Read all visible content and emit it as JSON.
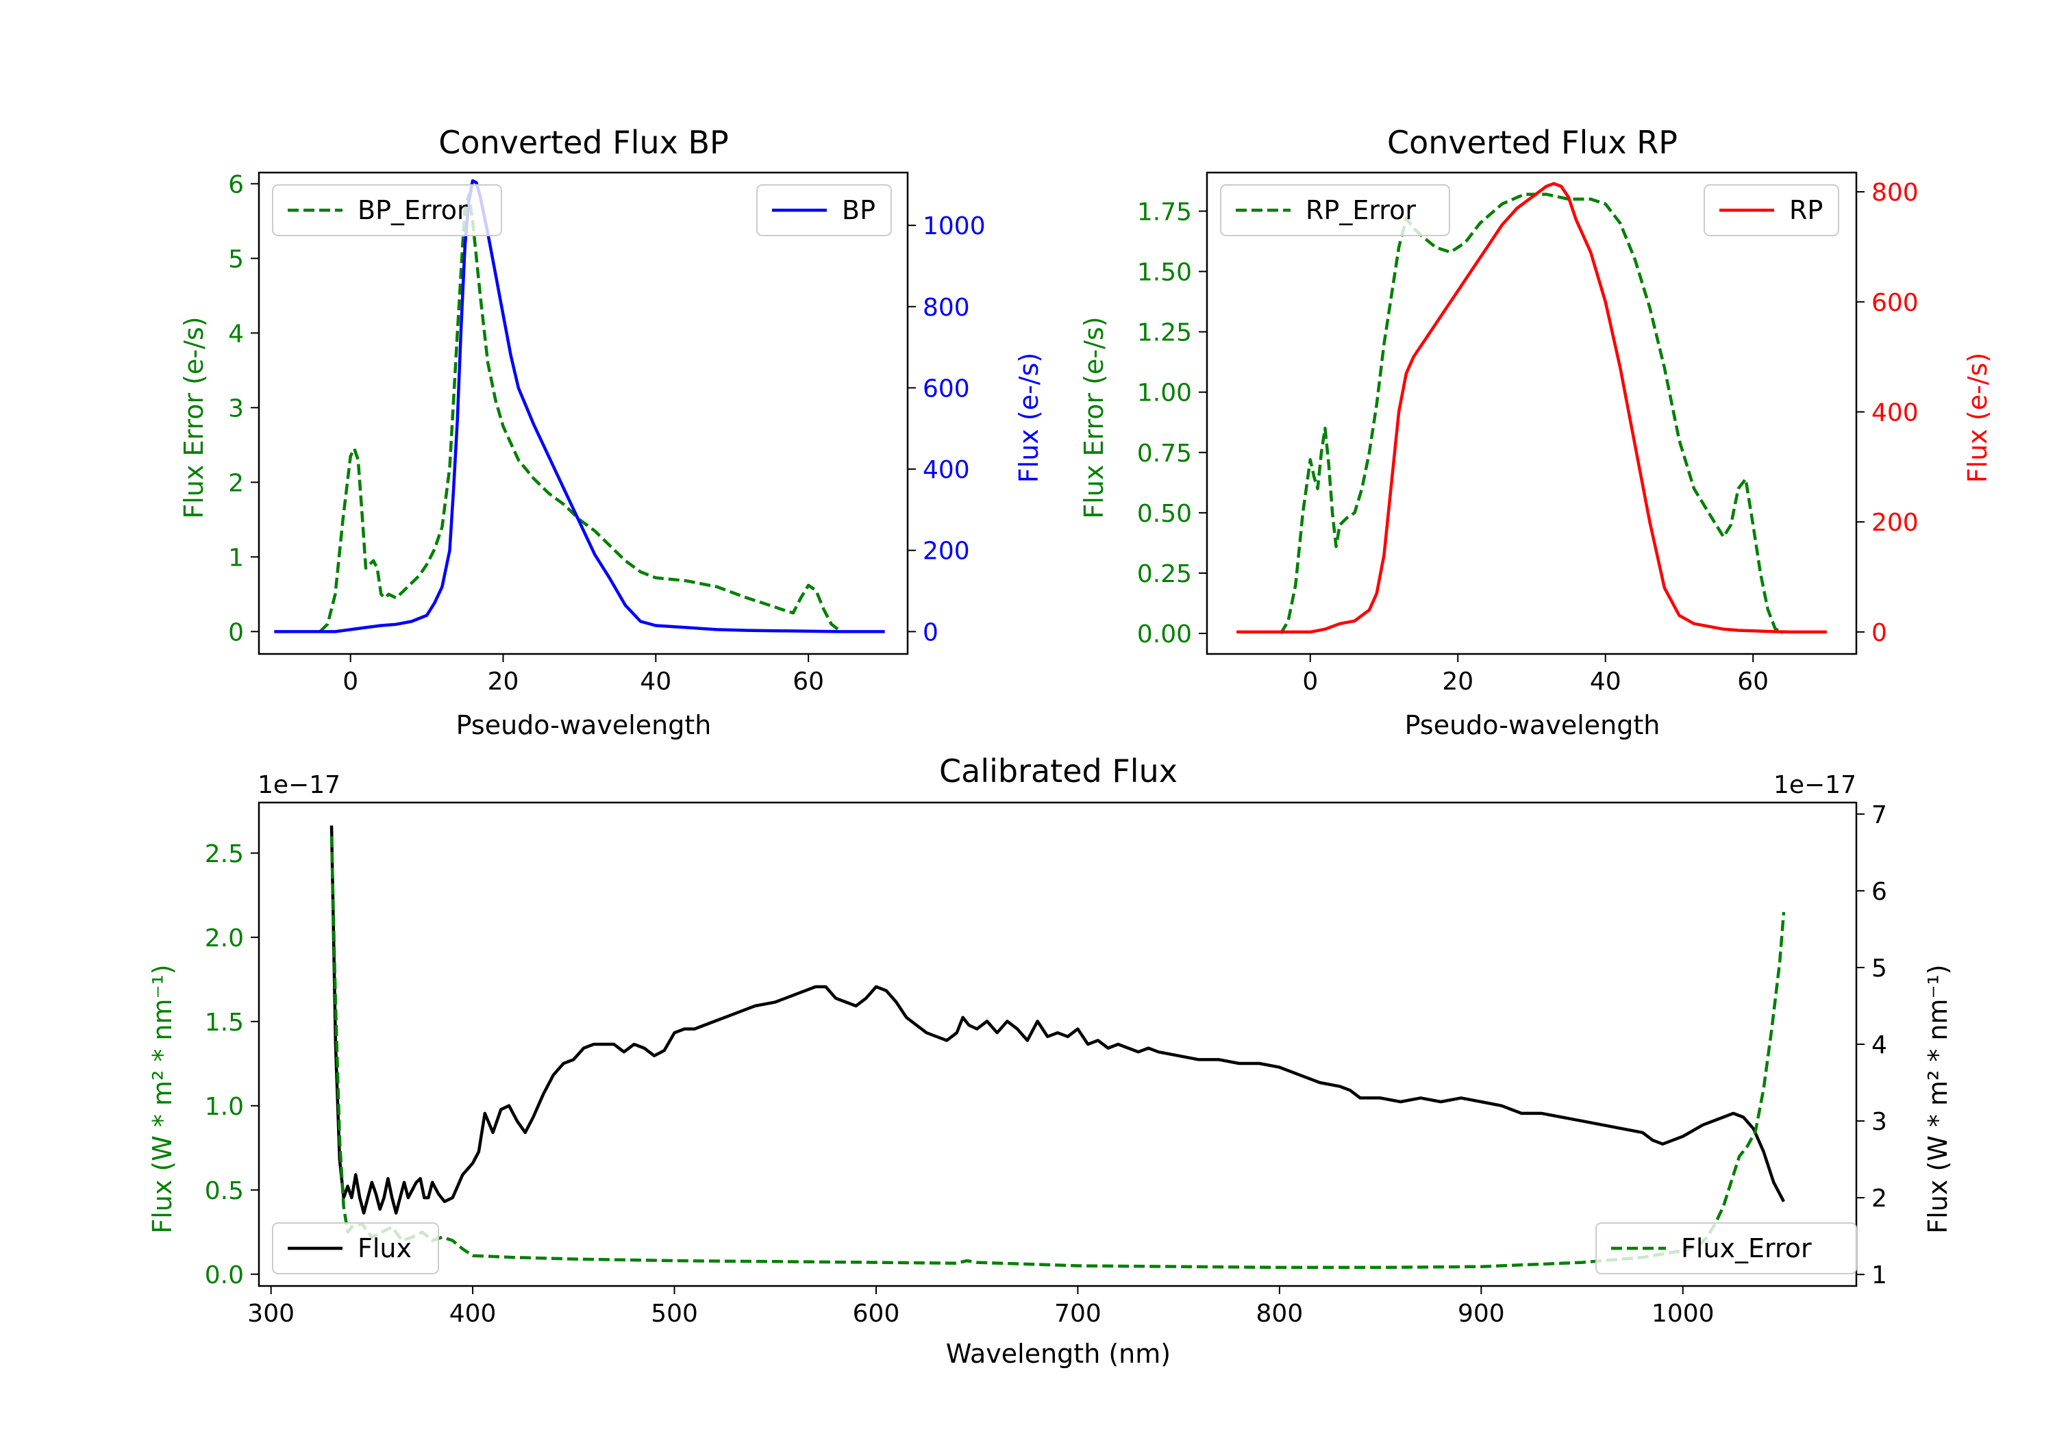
{
  "chart_data": [
    {
      "type": "line",
      "title": "Converted Flux BP",
      "xlabel": "Pseudo-wavelength",
      "ylabel_left": "Flux Error (e-/s)",
      "ylabel_right": "Flux (e-/s)",
      "xlim": [
        -12,
        73
      ],
      "ylim_left": [
        -0.3,
        6.15
      ],
      "ylim_right": [
        -55,
        1130
      ],
      "xticks": [
        0,
        20,
        40,
        60
      ],
      "yticks_left": [
        0,
        1,
        2,
        3,
        4,
        5,
        6
      ],
      "yticks_right": [
        0,
        200,
        400,
        600,
        800,
        1000
      ],
      "colors": {
        "left": "#008000",
        "right": "#0000ff"
      },
      "series": [
        {
          "name": "BP_Error",
          "axis": "left",
          "style": "dashed",
          "color": "#008000",
          "legend": "top-left",
          "x": [
            -4,
            -3,
            -2,
            -1,
            0,
            0.5,
            1,
            1.5,
            2,
            3,
            3.5,
            4,
            4.5,
            5,
            6,
            7,
            8,
            9,
            10,
            11,
            12,
            13,
            14,
            15,
            15.5,
            16,
            17,
            18,
            19,
            20,
            22,
            24,
            26,
            28,
            30,
            32,
            34,
            36,
            38,
            40,
            44,
            48,
            52,
            55,
            57,
            58,
            59,
            60,
            61,
            62,
            63,
            64
          ],
          "y": [
            0,
            0.1,
            0.5,
            1.5,
            2.35,
            2.45,
            2.3,
            1.6,
            0.85,
            0.95,
            0.85,
            0.5,
            0.45,
            0.5,
            0.45,
            0.55,
            0.65,
            0.75,
            0.9,
            1.1,
            1.4,
            2.2,
            4.0,
            5.7,
            5.85,
            5.5,
            4.5,
            3.6,
            3.1,
            2.75,
            2.3,
            2.05,
            1.85,
            1.7,
            1.5,
            1.35,
            1.15,
            0.95,
            0.8,
            0.72,
            0.68,
            0.6,
            0.45,
            0.35,
            0.28,
            0.25,
            0.45,
            0.62,
            0.55,
            0.3,
            0.1,
            0.02
          ]
        },
        {
          "name": "BP",
          "axis": "right",
          "style": "solid",
          "color": "#0000ff",
          "legend": "top-right",
          "x": [
            -10,
            -6,
            -2,
            0,
            2,
            4,
            6,
            8,
            10,
            11,
            12,
            13,
            13.5,
            14,
            14.5,
            15,
            15.5,
            16,
            16.5,
            17,
            18,
            19,
            20,
            21,
            22,
            24,
            26,
            28,
            30,
            32,
            34,
            36,
            38,
            40,
            44,
            48,
            52,
            56,
            60,
            64,
            68,
            70
          ],
          "y": [
            0,
            0,
            0,
            5,
            10,
            15,
            18,
            25,
            40,
            70,
            110,
            200,
            350,
            520,
            750,
            950,
            1060,
            1110,
            1105,
            1070,
            980,
            880,
            780,
            680,
            600,
            510,
            430,
            350,
            270,
            190,
            130,
            65,
            25,
            15,
            10,
            5,
            3,
            2,
            1,
            0,
            0,
            0
          ]
        }
      ]
    },
    {
      "type": "line",
      "title": "Converted Flux RP",
      "xlabel": "Pseudo-wavelength",
      "ylabel_left": "Flux Error (e-/s)",
      "ylabel_right": "Flux (e-/s)",
      "xlim": [
        -14,
        74
      ],
      "ylim_left": [
        -0.085,
        1.91
      ],
      "ylim_right": [
        -40,
        835
      ],
      "xticks": [
        0,
        20,
        40,
        60
      ],
      "yticks_left": [
        0.0,
        0.25,
        0.5,
        0.75,
        1.0,
        1.25,
        1.5,
        1.75
      ],
      "yticks_left_labels": [
        "0.00",
        "0.25",
        "0.50",
        "0.75",
        "1.00",
        "1.25",
        "1.50",
        "1.75"
      ],
      "yticks_right": [
        0,
        200,
        400,
        600,
        800
      ],
      "colors": {
        "left": "#008000",
        "right": "#ff0000"
      },
      "series": [
        {
          "name": "RP_Error",
          "axis": "left",
          "style": "dashed",
          "color": "#008000",
          "legend": "top-left",
          "x": [
            -4,
            -3,
            -2,
            -1,
            0,
            0.5,
            1,
            1.5,
            2,
            2.5,
            3,
            3.5,
            4,
            5,
            6,
            7,
            8,
            9,
            10,
            11,
            12,
            13,
            14,
            15,
            17,
            19,
            21,
            23,
            26,
            29,
            32,
            35,
            38,
            40,
            42,
            44,
            46,
            48,
            50,
            52,
            54,
            56,
            57,
            58,
            59,
            60,
            61,
            62,
            63,
            64
          ],
          "y": [
            0,
            0.05,
            0.2,
            0.5,
            0.72,
            0.65,
            0.6,
            0.75,
            0.85,
            0.7,
            0.5,
            0.36,
            0.45,
            0.48,
            0.5,
            0.6,
            0.75,
            0.95,
            1.2,
            1.4,
            1.6,
            1.72,
            1.68,
            1.65,
            1.6,
            1.58,
            1.62,
            1.7,
            1.78,
            1.82,
            1.82,
            1.8,
            1.8,
            1.78,
            1.7,
            1.55,
            1.35,
            1.1,
            0.8,
            0.6,
            0.5,
            0.4,
            0.45,
            0.6,
            0.64,
            0.45,
            0.25,
            0.1,
            0.02,
            0
          ]
        },
        {
          "name": "RP",
          "axis": "right",
          "style": "solid",
          "color": "#ff0000",
          "legend": "top-right",
          "x": [
            -10,
            -5,
            0,
            2,
            4,
            6,
            8,
            9,
            10,
            11,
            12,
            13,
            14,
            16,
            18,
            20,
            22,
            24,
            26,
            28,
            30,
            32,
            33,
            34,
            35,
            36,
            38,
            40,
            42,
            44,
            46,
            48,
            50,
            52,
            54,
            56,
            58,
            60,
            62,
            65,
            70
          ],
          "y": [
            0,
            0,
            0,
            5,
            15,
            20,
            40,
            70,
            140,
            270,
            400,
            470,
            500,
            540,
            580,
            620,
            660,
            700,
            740,
            770,
            790,
            810,
            815,
            810,
            790,
            750,
            690,
            600,
            480,
            340,
            200,
            80,
            30,
            15,
            10,
            5,
            3,
            2,
            1,
            0,
            0
          ]
        }
      ]
    },
    {
      "type": "line",
      "title": "Calibrated Flux",
      "xlabel": "Wavelength (nm)",
      "ylabel_left": "Flux (W * m² * nm⁻¹)",
      "ylabel_right": "Flux (W * m² * nm⁻¹)",
      "scale_left": "1e−17",
      "scale_right": "1e−17",
      "xlim": [
        294,
        1086
      ],
      "ylim_left": [
        -0.07,
        2.8
      ],
      "ylim_right": [
        0.85,
        7.15
      ],
      "xticks": [
        300,
        400,
        500,
        600,
        700,
        800,
        900,
        1000
      ],
      "yticks_left": [
        0.0,
        0.5,
        1.0,
        1.5,
        2.0,
        2.5
      ],
      "yticks_left_labels": [
        "0.0",
        "0.5",
        "1.0",
        "1.5",
        "2.0",
        "2.5"
      ],
      "yticks_right": [
        1,
        2,
        3,
        4,
        5,
        6,
        7
      ],
      "colors": {
        "left": "#008000",
        "right": "#000000"
      },
      "series": [
        {
          "name": "Flux",
          "axis": "right",
          "style": "solid",
          "color": "#000000",
          "legend": "lower-left",
          "x": [
            330,
            332,
            334,
            336,
            338,
            340,
            342,
            344,
            346,
            348,
            350,
            352,
            354,
            356,
            358,
            360,
            362,
            364,
            366,
            368,
            370,
            372,
            374,
            376,
            378,
            380,
            383,
            386,
            390,
            395,
            400,
            403,
            406,
            410,
            414,
            418,
            422,
            426,
            430,
            435,
            440,
            445,
            450,
            455,
            460,
            465,
            470,
            475,
            480,
            485,
            490,
            495,
            500,
            505,
            510,
            520,
            530,
            540,
            550,
            560,
            570,
            575,
            580,
            585,
            590,
            595,
            600,
            605,
            610,
            615,
            620,
            625,
            630,
            635,
            640,
            643,
            646,
            650,
            655,
            660,
            665,
            670,
            675,
            680,
            685,
            690,
            695,
            700,
            705,
            710,
            715,
            720,
            725,
            730,
            735,
            740,
            750,
            760,
            770,
            780,
            790,
            800,
            810,
            820,
            830,
            835,
            840,
            850,
            860,
            870,
            880,
            890,
            900,
            910,
            920,
            930,
            940,
            950,
            960,
            970,
            980,
            985,
            990,
            1000,
            1010,
            1020,
            1025,
            1030,
            1035,
            1040,
            1045,
            1050
          ],
          "y": [
            6.85,
            4.0,
            2.5,
            2.0,
            2.15,
            2.0,
            2.3,
            2.0,
            1.8,
            2.0,
            2.2,
            2.05,
            1.85,
            2.0,
            2.25,
            2.0,
            1.8,
            2.0,
            2.2,
            2.0,
            2.1,
            2.2,
            2.25,
            2.0,
            2.0,
            2.2,
            2.05,
            1.95,
            2.0,
            2.3,
            2.45,
            2.6,
            3.1,
            2.85,
            3.15,
            3.2,
            3.0,
            2.85,
            3.05,
            3.35,
            3.6,
            3.75,
            3.8,
            3.95,
            4.0,
            4.0,
            4.0,
            3.9,
            4.0,
            3.95,
            3.85,
            3.92,
            4.15,
            4.2,
            4.2,
            4.3,
            4.4,
            4.5,
            4.55,
            4.65,
            4.75,
            4.75,
            4.6,
            4.55,
            4.5,
            4.6,
            4.75,
            4.7,
            4.55,
            4.35,
            4.25,
            4.15,
            4.1,
            4.05,
            4.15,
            4.35,
            4.25,
            4.2,
            4.3,
            4.15,
            4.3,
            4.2,
            4.05,
            4.3,
            4.1,
            4.15,
            4.1,
            4.2,
            4.0,
            4.05,
            3.95,
            4.0,
            3.95,
            3.9,
            3.95,
            3.9,
            3.85,
            3.8,
            3.8,
            3.75,
            3.75,
            3.7,
            3.6,
            3.5,
            3.45,
            3.4,
            3.3,
            3.3,
            3.25,
            3.3,
            3.25,
            3.3,
            3.25,
            3.2,
            3.1,
            3.1,
            3.05,
            3.0,
            2.95,
            2.9,
            2.85,
            2.75,
            2.7,
            2.8,
            2.95,
            3.05,
            3.1,
            3.05,
            2.9,
            2.6,
            2.2,
            1.95
          ]
        },
        {
          "name": "Flux_Error",
          "axis": "left",
          "style": "dashed",
          "color": "#008000",
          "legend": "lower-right",
          "x": [
            330,
            332,
            334,
            336,
            338,
            340,
            345,
            350,
            355,
            360,
            365,
            370,
            375,
            380,
            385,
            390,
            395,
            400,
            420,
            450,
            500,
            550,
            600,
            640,
            645,
            650,
            700,
            750,
            800,
            850,
            900,
            950,
            980,
            1000,
            1008,
            1012,
            1016,
            1020,
            1024,
            1028,
            1032,
            1036,
            1040,
            1044,
            1048,
            1050
          ],
          "y": [
            2.6,
            1.6,
            0.8,
            0.4,
            0.25,
            0.28,
            0.3,
            0.22,
            0.25,
            0.28,
            0.2,
            0.22,
            0.25,
            0.2,
            0.22,
            0.2,
            0.15,
            0.11,
            0.1,
            0.09,
            0.08,
            0.075,
            0.07,
            0.065,
            0.08,
            0.07,
            0.05,
            0.045,
            0.04,
            0.04,
            0.045,
            0.07,
            0.1,
            0.14,
            0.17,
            0.22,
            0.3,
            0.4,
            0.55,
            0.7,
            0.76,
            0.85,
            1.1,
            1.45,
            1.85,
            2.15
          ]
        }
      ]
    }
  ]
}
